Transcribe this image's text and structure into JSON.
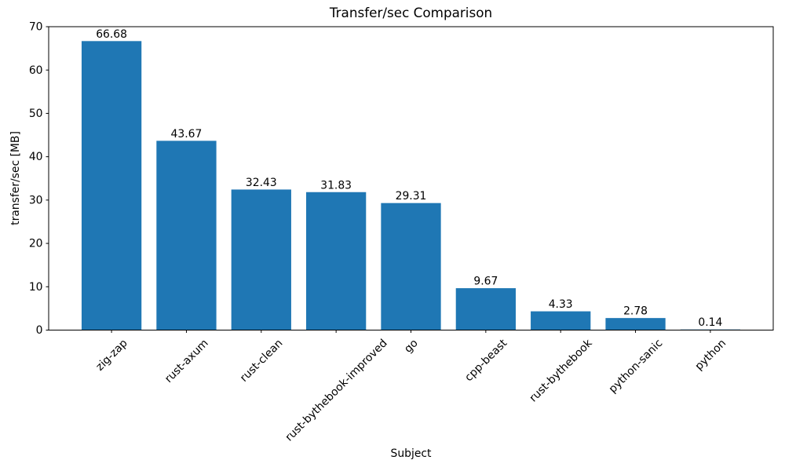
{
  "chart_data": {
    "type": "bar",
    "title": "Transfer/sec Comparison",
    "xlabel": "Subject",
    "ylabel": "transfer/sec [MB]",
    "categories": [
      "zig-zap",
      "rust-axum",
      "rust-clean",
      "rust-bythebook-improved",
      "go",
      "cpp-beast",
      "rust-bythebook",
      "python-sanic",
      "python"
    ],
    "values": [
      66.68,
      43.67,
      32.43,
      31.83,
      29.31,
      9.67,
      4.33,
      2.78,
      0.14
    ],
    "value_labels": [
      "66.68",
      "43.67",
      "32.43",
      "31.83",
      "29.31",
      "9.67",
      "4.33",
      "2.78",
      "0.14"
    ],
    "ylim": [
      0,
      70
    ],
    "yticks": [
      0,
      10,
      20,
      30,
      40,
      50,
      60,
      70
    ],
    "ytick_labels": [
      "0",
      "10",
      "20",
      "30",
      "40",
      "50",
      "60",
      "70"
    ],
    "xtick_rotation_deg": 45,
    "bar_color": "#1f77b4",
    "axis_color": "#000000",
    "background_color": "#ffffff",
    "grid": false,
    "legend": "none"
  }
}
